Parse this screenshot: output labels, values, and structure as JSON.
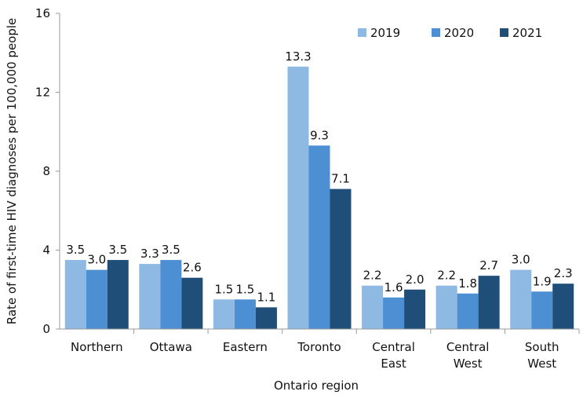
{
  "chart_data": {
    "type": "bar",
    "title": "",
    "xlabel": "Ontario region",
    "ylabel": "Rate of first-time HIV diagnoses per 100,000 people",
    "ylim": [
      0,
      16
    ],
    "yticks": [
      "0",
      "4",
      "8",
      "12",
      "16"
    ],
    "grid": false,
    "legend_position": "top-right",
    "categories": [
      [
        "Northern"
      ],
      [
        "Ottawa"
      ],
      [
        "Eastern"
      ],
      [
        "Toronto"
      ],
      [
        "Central",
        "East"
      ],
      [
        "Central",
        "West"
      ],
      [
        "South",
        "West"
      ]
    ],
    "series": [
      {
        "name": "2019",
        "color": "#8eb9e2",
        "values": [
          3.5,
          3.3,
          1.5,
          13.3,
          2.2,
          2.2,
          3.0
        ],
        "labels": [
          "3.5",
          "3.3",
          "1.5",
          "13.3",
          "2.2",
          "2.2",
          "3.0"
        ]
      },
      {
        "name": "2020",
        "color": "#4d8fd3",
        "values": [
          3.0,
          3.5,
          1.5,
          9.3,
          1.6,
          1.8,
          1.9
        ],
        "labels": [
          "3.0",
          "3.5",
          "1.5",
          "9.3",
          "1.6",
          "1.8",
          "1.9"
        ]
      },
      {
        "name": "2021",
        "color": "#1f4e79",
        "values": [
          3.5,
          2.6,
          1.1,
          7.1,
          2.0,
          2.7,
          2.3
        ],
        "labels": [
          "3.5",
          "2.6",
          "1.1",
          "7.1",
          "2.0",
          "2.7",
          "2.3"
        ]
      }
    ]
  }
}
